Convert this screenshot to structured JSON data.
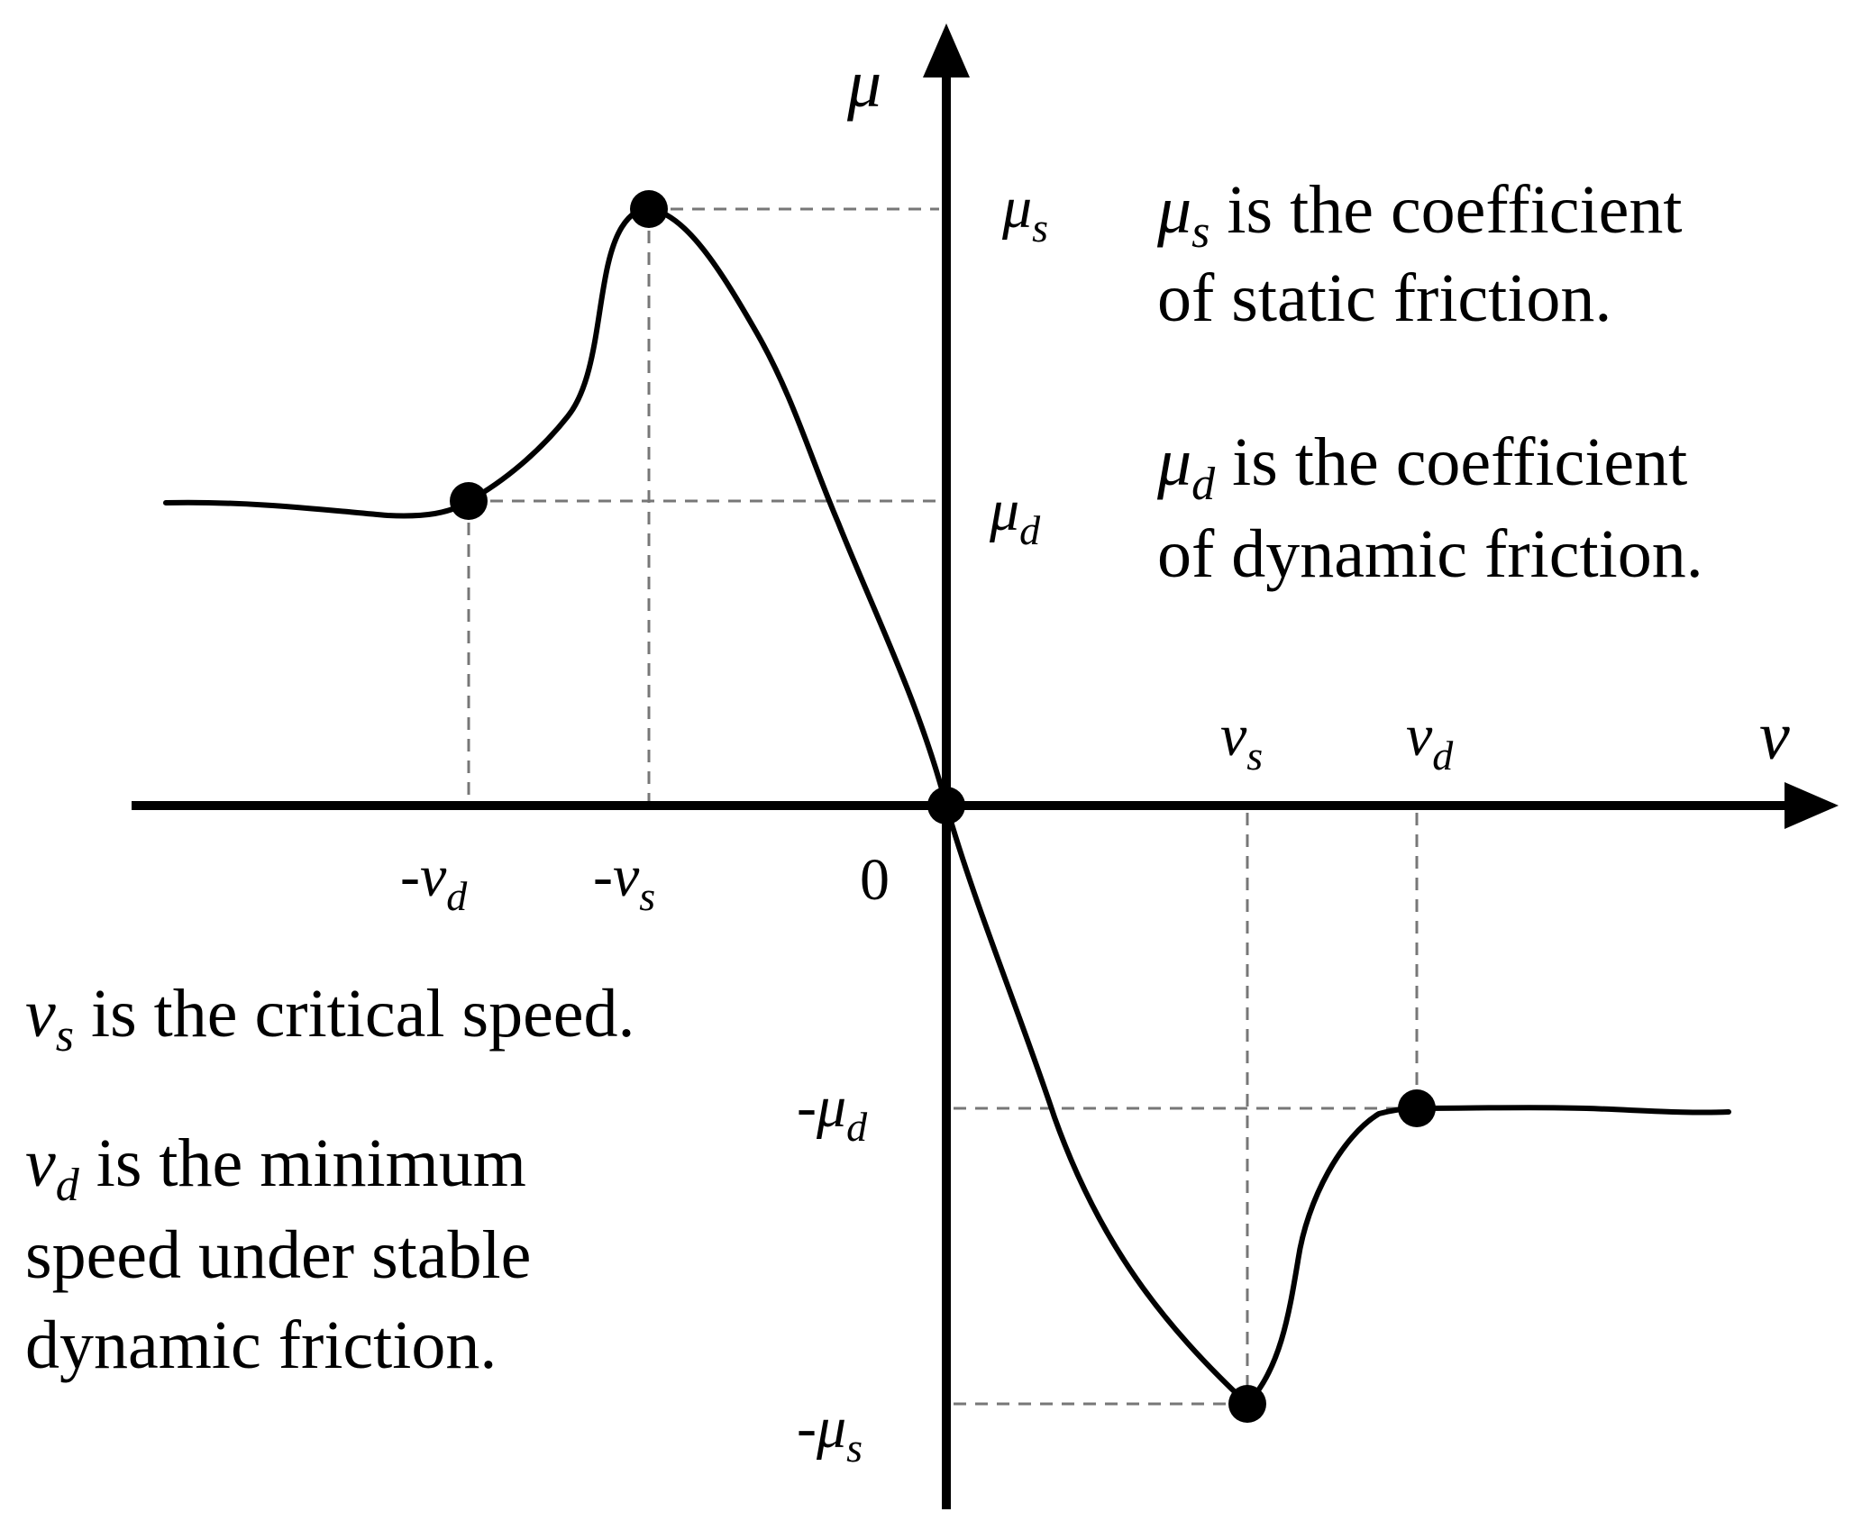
{
  "axes": {
    "x_name": "v",
    "y_name": "μ"
  },
  "origin_label": "0",
  "x_ticks": [
    {
      "sign": "-",
      "base": "v",
      "sub": "d"
    },
    {
      "sign": "-",
      "base": "v",
      "sub": "s"
    },
    {
      "sign": "",
      "base": "v",
      "sub": "s"
    },
    {
      "sign": "",
      "base": "v",
      "sub": "d"
    }
  ],
  "y_ticks": [
    {
      "sign": "",
      "base": "μ",
      "sub": "s"
    },
    {
      "sign": "",
      "base": "μ",
      "sub": "d"
    },
    {
      "sign": "-",
      "base": "μ",
      "sub": "d"
    },
    {
      "sign": "-",
      "base": "μ",
      "sub": "s"
    }
  ],
  "notes": {
    "mu_s": {
      "base": "μ",
      "sub": "s",
      "line1": " is the coefficient",
      "line2": "of static friction."
    },
    "mu_d": {
      "base": "μ",
      "sub": "d",
      "line1": " is the coefficient",
      "line2": "of dynamic friction."
    },
    "v_s": {
      "base": "v",
      "sub": "s",
      "line1": " is the critical speed."
    },
    "v_d": {
      "base": "v",
      "sub": "d",
      "line1": " is the minimum",
      "line2": "speed under stable",
      "line3": "dynamic friction."
    }
  },
  "colors": {
    "curve": "#000000",
    "guide": "#777777"
  }
}
